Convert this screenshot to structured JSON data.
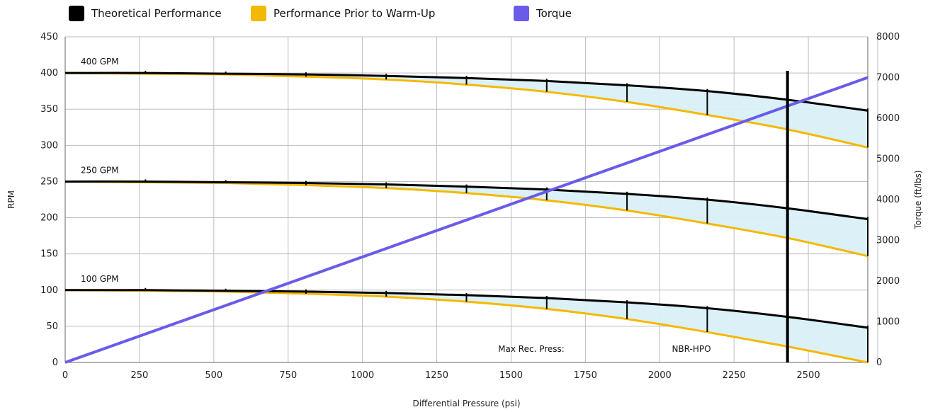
{
  "chart_data": {
    "type": "line",
    "xlabel": "Differential Pressure (psi)",
    "ylabel": "RPM",
    "y2label": "Torque (ft/lbs)",
    "xlim": [
      0,
      2700
    ],
    "ylim": [
      0,
      450
    ],
    "y2lim": [
      0,
      8000
    ],
    "x_ticks": [
      0,
      250,
      500,
      750,
      1000,
      1250,
      1500,
      1750,
      2000,
      2250,
      2500
    ],
    "y_ticks": [
      0,
      50,
      100,
      150,
      200,
      250,
      300,
      350,
      400,
      450
    ],
    "y2_ticks": [
      0,
      1000,
      2000,
      3000,
      4000,
      5000,
      6000,
      7000,
      8000
    ],
    "grid": true,
    "legend_position": "top",
    "legend": [
      {
        "name": "Theoretical Performance",
        "color": "#000000"
      },
      {
        "name": "Performance Prior to Warm-Up",
        "color": "#f5b800"
      },
      {
        "name": "Torque",
        "color": "#6a5ce8"
      }
    ],
    "flow_labels": [
      {
        "text": "400 GPM",
        "at_y": 400
      },
      {
        "text": "250 GPM",
        "at_y": 250
      },
      {
        "text": "100 GPM",
        "at_y": 100
      }
    ],
    "x": [
      0,
      270,
      540,
      810,
      1080,
      1350,
      1620,
      1890,
      2160,
      2430,
      2700
    ],
    "curves": [
      {
        "flow": "400 GPM",
        "theoretical": [
          400,
          400,
          399,
          398,
          396,
          393,
          389,
          383,
          375,
          363,
          348
        ],
        "prior_warmup": [
          400,
          399,
          398,
          395,
          391,
          384,
          374,
          360,
          342,
          322,
          297
        ]
      },
      {
        "flow": "250 GPM",
        "theoretical": [
          250,
          250,
          249,
          248,
          246,
          243,
          239,
          233,
          225,
          213,
          198
        ],
        "prior_warmup": [
          250,
          249,
          248,
          245,
          241,
          234,
          224,
          210,
          192,
          172,
          147
        ]
      },
      {
        "flow": "100 GPM",
        "theoretical": [
          100,
          100,
          99,
          98,
          96,
          93,
          89,
          83,
          75,
          63,
          48
        ],
        "prior_warmup": [
          100,
          99,
          98,
          95,
          91,
          84,
          74,
          60,
          42,
          22,
          0
        ]
      }
    ],
    "torque": {
      "x": [
        0,
        2700
      ],
      "values": [
        0,
        7000
      ]
    },
    "max_rec_press": {
      "label": "Max Rec. Press:",
      "tag": "NBR-HPO",
      "x": 2430
    }
  },
  "colors": {
    "theoretical": "#000000",
    "prior_warmup": "#f5b800",
    "torque": "#6a5ce8",
    "fill": "#d9f0f7",
    "grid": "#bdbdbd",
    "axis_text": "#222222"
  }
}
